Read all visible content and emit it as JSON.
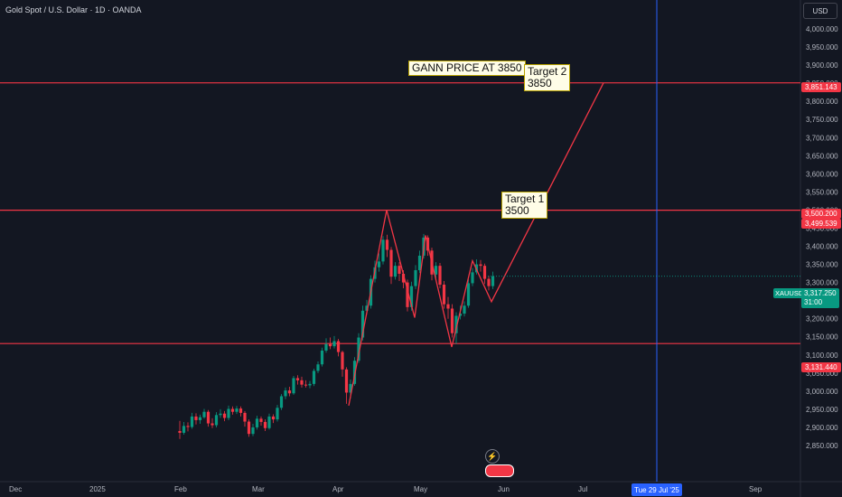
{
  "header": {
    "title": "Gold Spot / U.S. Dollar · 1D · OANDA",
    "currency_button": "USD"
  },
  "chart_data": {
    "type": "candlestick",
    "symbol": "XAUUSD",
    "y_ticks": [
      2850,
      2900,
      2950,
      3000,
      3050,
      3100,
      3150,
      3200,
      3250,
      3300,
      3350,
      3400,
      3450,
      3500,
      3550,
      3600,
      3650,
      3700,
      3750,
      3800,
      3850,
      3900,
      3950,
      4000
    ],
    "y_tick_labels": [
      "2,850.000",
      "2,900.000",
      "2,950.000",
      "3,000.000",
      "3,050.000",
      "3,100.000",
      "3,150.000",
      "3,200.000",
      "3,250.000",
      "3,300.000",
      "3,350.000",
      "3,400.000",
      "3,450.000",
      "3,500.000",
      "3,550.000",
      "3,600.000",
      "3,650.000",
      "3,700.000",
      "3,750.000",
      "3,800.000",
      "3,850.000",
      "3,900.000",
      "3,950.000",
      "4,000.000"
    ],
    "ylim": [
      2840,
      4040
    ],
    "x_labels": [
      "Dec",
      "2025",
      "Feb",
      "Mar",
      "Apr",
      "May",
      "Jun",
      "Jul",
      "Sep"
    ],
    "horizontal_levels": [
      3851.143,
      3499.539,
      3131.44
    ],
    "level_labels": [
      "3,851.143",
      "3,500.200",
      "3,499.539",
      "3,131.440"
    ],
    "last_price": "3,317.250",
    "countdown": "31:00",
    "cursor_date": "Tue 29 Jul '25",
    "annotations": [
      {
        "text": "GANN PRICE AT 3850"
      },
      {
        "text": "Target 2\n3850"
      },
      {
        "text": "Target 1\n3500"
      }
    ],
    "zigzag_prices": [
      2960,
      3500,
      3203,
      3430,
      3122,
      3360,
      3247,
      3500,
      3851
    ],
    "candles": [
      [
        2890,
        2885,
        2918,
        2868
      ],
      [
        2885,
        2904,
        2915,
        2880
      ],
      [
        2904,
        2901,
        2914,
        2889
      ],
      [
        2901,
        2930,
        2940,
        2896
      ],
      [
        2930,
        2920,
        2939,
        2908
      ],
      [
        2920,
        2928,
        2935,
        2910
      ],
      [
        2928,
        2943,
        2951,
        2924
      ],
      [
        2943,
        2911,
        2948,
        2902
      ],
      [
        2911,
        2906,
        2925,
        2898
      ],
      [
        2906,
        2934,
        2942,
        2900
      ],
      [
        2934,
        2938,
        2950,
        2926
      ],
      [
        2938,
        2926,
        2945,
        2917
      ],
      [
        2926,
        2951,
        2960,
        2920
      ],
      [
        2951,
        2943,
        2958,
        2935
      ],
      [
        2943,
        2952,
        2959,
        2937
      ],
      [
        2952,
        2940,
        2958,
        2930
      ],
      [
        2940,
        2916,
        2945,
        2902
      ],
      [
        2916,
        2882,
        2922,
        2874
      ],
      [
        2882,
        2900,
        2910,
        2876
      ],
      [
        2900,
        2924,
        2932,
        2894
      ],
      [
        2924,
        2915,
        2930,
        2905
      ],
      [
        2915,
        2898,
        2922,
        2890
      ],
      [
        2898,
        2930,
        2938,
        2894
      ],
      [
        2930,
        2922,
        2936,
        2912
      ],
      [
        2922,
        2954,
        2962,
        2916
      ],
      [
        2954,
        2986,
        2992,
        2948
      ],
      [
        2986,
        3002,
        3010,
        2978
      ],
      [
        3002,
        2994,
        3012,
        2986
      ],
      [
        2994,
        3036,
        3042,
        2990
      ],
      [
        3036,
        3030,
        3044,
        3018
      ],
      [
        3030,
        3018,
        3040,
        3010
      ],
      [
        3018,
        3016,
        3030,
        3010
      ],
      [
        3016,
        3020,
        3028,
        3008
      ],
      [
        3020,
        3056,
        3062,
        3014
      ],
      [
        3056,
        3074,
        3082,
        3050
      ],
      [
        3074,
        3112,
        3120,
        3068
      ],
      [
        3112,
        3130,
        3146,
        3106
      ],
      [
        3130,
        3124,
        3148,
        3116
      ],
      [
        3124,
        3138,
        3152,
        3118
      ],
      [
        3138,
        3108,
        3144,
        3096
      ],
      [
        3108,
        3060,
        3112,
        3040
      ],
      [
        3060,
        2996,
        3066,
        2965
      ],
      [
        2996,
        3020,
        3032,
        2980
      ],
      [
        3020,
        3084,
        3094,
        3015
      ],
      [
        3084,
        3148,
        3160,
        3078
      ],
      [
        3148,
        3222,
        3236,
        3140
      ],
      [
        3222,
        3236,
        3252,
        3212
      ],
      [
        3236,
        3310,
        3320,
        3228
      ],
      [
        3310,
        3342,
        3360,
        3300
      ],
      [
        3342,
        3358,
        3380,
        3330
      ],
      [
        3358,
        3418,
        3428,
        3350
      ],
      [
        3418,
        3390,
        3432,
        3370
      ],
      [
        3390,
        3316,
        3398,
        3296
      ],
      [
        3316,
        3346,
        3356,
        3308
      ],
      [
        3346,
        3324,
        3356,
        3304
      ],
      [
        3324,
        3300,
        3334,
        3284
      ],
      [
        3300,
        3232,
        3308,
        3220
      ],
      [
        3232,
        3290,
        3302,
        3222
      ],
      [
        3290,
        3334,
        3348,
        3282
      ],
      [
        3334,
        3374,
        3388,
        3326
      ],
      [
        3374,
        3424,
        3434,
        3366
      ],
      [
        3424,
        3388,
        3430,
        3374
      ],
      [
        3388,
        3322,
        3396,
        3306
      ],
      [
        3322,
        3346,
        3356,
        3310
      ],
      [
        3346,
        3294,
        3354,
        3284
      ],
      [
        3294,
        3240,
        3304,
        3228
      ],
      [
        3240,
        3228,
        3260,
        3200
      ],
      [
        3228,
        3160,
        3240,
        3148
      ],
      [
        3160,
        3208,
        3218,
        3130
      ],
      [
        3208,
        3214,
        3236,
        3198
      ],
      [
        3214,
        3236,
        3248,
        3206
      ],
      [
        3236,
        3298,
        3310,
        3230
      ],
      [
        3298,
        3328,
        3340,
        3290
      ],
      [
        3328,
        3350,
        3364,
        3322
      ],
      [
        3350,
        3346,
        3362,
        3330
      ],
      [
        3346,
        3310,
        3352,
        3296
      ],
      [
        3310,
        3290,
        3318,
        3278
      ],
      [
        3290,
        3317,
        3330,
        3282
      ]
    ]
  }
}
